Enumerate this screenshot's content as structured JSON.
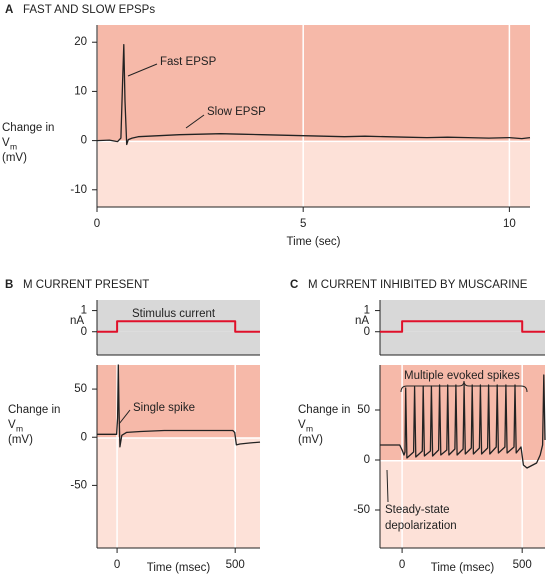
{
  "chart_data": [
    {
      "type": "line",
      "panel": "A",
      "title": "FAST AND SLOW EPSPs",
      "xlabel": "Time (sec)",
      "ylabel": {
        "line1": "Change in",
        "var": "V",
        "sub": "m",
        "unit": "(mV)"
      },
      "xlim": [
        0,
        10.5
      ],
      "ylim": [
        -13.5,
        23.5
      ],
      "xticks": [
        0,
        5,
        10
      ],
      "yticks": [
        20,
        10,
        0,
        -10
      ],
      "grid": true,
      "background": [
        "#f6b9a9",
        "#fde1d8"
      ],
      "color": "#222222",
      "annotations": [
        "Fast EPSP",
        "Slow EPSP"
      ],
      "x": [
        0,
        0.3,
        0.5,
        0.58,
        0.62,
        0.65,
        0.68,
        0.72,
        0.76,
        0.85,
        1.0,
        1.5,
        2.0,
        2.5,
        3.0,
        3.5,
        4.0,
        4.5,
        5.0,
        5.5,
        6.0,
        6.5,
        7.0,
        7.5,
        8.0,
        8.5,
        9.0,
        9.5,
        10.0,
        10.3,
        10.5
      ],
      "values": [
        0,
        0.1,
        -0.2,
        0.5,
        12,
        19.5,
        8,
        -0.8,
        0.2,
        0.5,
        0.8,
        1,
        1.2,
        1.3,
        1.4,
        1.3,
        1.2,
        1.1,
        1,
        0.9,
        0.8,
        0.9,
        0.8,
        0.7,
        0.6,
        0.7,
        0.6,
        0.5,
        0.6,
        0.4,
        0.6
      ]
    },
    {
      "type": "line",
      "panel": "B",
      "title": "M CURRENT PRESENT",
      "ylabel": "nA",
      "xlim": [
        -85,
        605
      ],
      "ylim": [
        -1.1,
        1.5
      ],
      "yticks": [
        1,
        0
      ],
      "grid": false,
      "background": [
        "#d8d8d8",
        "#d8d8d8"
      ],
      "color": "#e0102a",
      "annotations": [
        "Stimulus current"
      ],
      "x": [
        -85,
        0,
        0,
        500,
        500,
        605
      ],
      "values": [
        0,
        0,
        0.5,
        0.5,
        0,
        0
      ]
    },
    {
      "type": "line",
      "xlabel": "Time (msec)",
      "ylabel": {
        "line1": "Change in",
        "var": "V",
        "sub": "m",
        "unit": "(mV)"
      },
      "xlim": [
        -85,
        605
      ],
      "ylim": [
        -115,
        75
      ],
      "xticks": [
        0,
        500
      ],
      "yticks": [
        50,
        0,
        -50
      ],
      "grid": true,
      "background": [
        "#f6b9a9",
        "#fde1d8"
      ],
      "color": "#222222",
      "annotations": [
        "Single spike"
      ],
      "x": [
        -85,
        -20,
        -2,
        2,
        5,
        8,
        12,
        20,
        40,
        100,
        200,
        300,
        400,
        490,
        498,
        505,
        520,
        560,
        605
      ],
      "values": [
        3,
        3,
        3,
        20,
        75,
        30,
        -10,
        2,
        5,
        6,
        7,
        7,
        7,
        7,
        5,
        -8,
        -7,
        -6,
        -5
      ]
    },
    {
      "type": "line",
      "panel": "C",
      "title": "M CURRENT INHIBITED BY MUSCARINE",
      "ylabel": "nA",
      "xlim": [
        -92,
        595
      ],
      "ylim": [
        -1.1,
        1.5
      ],
      "yticks": [
        1,
        0
      ],
      "grid": false,
      "background": [
        "#d8d8d8",
        "#d8d8d8"
      ],
      "color": "#e0102a",
      "x": [
        -92,
        0,
        0,
        500,
        500,
        595
      ],
      "values": [
        0,
        0,
        0.5,
        0.5,
        0,
        0
      ]
    },
    {
      "type": "line",
      "xlabel": "Time (msec)",
      "ylabel": {
        "line1": "Change in",
        "var": "V",
        "sub": "m",
        "unit": "(mV)"
      },
      "xlim": [
        -92,
        595
      ],
      "ylim": [
        -88,
        95
      ],
      "xticks": [
        0,
        500
      ],
      "yticks": [
        50,
        0,
        -50
      ],
      "grid": true,
      "background": [
        "#f6b9a9",
        "#fde1d8"
      ],
      "color": "#222222",
      "annotations": [
        "Multiple evoked spikes",
        "Steady-state",
        "depolarization"
      ],
      "x": [
        -92,
        -10,
        0,
        8,
        12,
        15,
        20,
        48,
        52,
        57,
        84,
        88,
        93,
        118,
        122,
        127,
        152,
        156,
        161,
        186,
        190,
        195,
        220,
        224,
        229,
        254,
        258,
        263,
        288,
        292,
        297,
        322,
        326,
        331,
        356,
        360,
        365,
        392,
        396,
        401,
        428,
        432,
        437,
        466,
        470,
        475,
        495,
        505,
        520,
        560,
        575,
        585,
        590,
        595
      ],
      "values": [
        15,
        15,
        10,
        5,
        8,
        72,
        2,
        8,
        73,
        3,
        9,
        74,
        4,
        9,
        74,
        4,
        10,
        75,
        5,
        10,
        75,
        5,
        11,
        75,
        5,
        11,
        75,
        6,
        12,
        75,
        6,
        12,
        75,
        6,
        12,
        75,
        6,
        13,
        75,
        7,
        13,
        75,
        7,
        13,
        75,
        7,
        13,
        -5,
        -8,
        -3,
        5,
        15,
        85,
        20
      ]
    }
  ]
}
